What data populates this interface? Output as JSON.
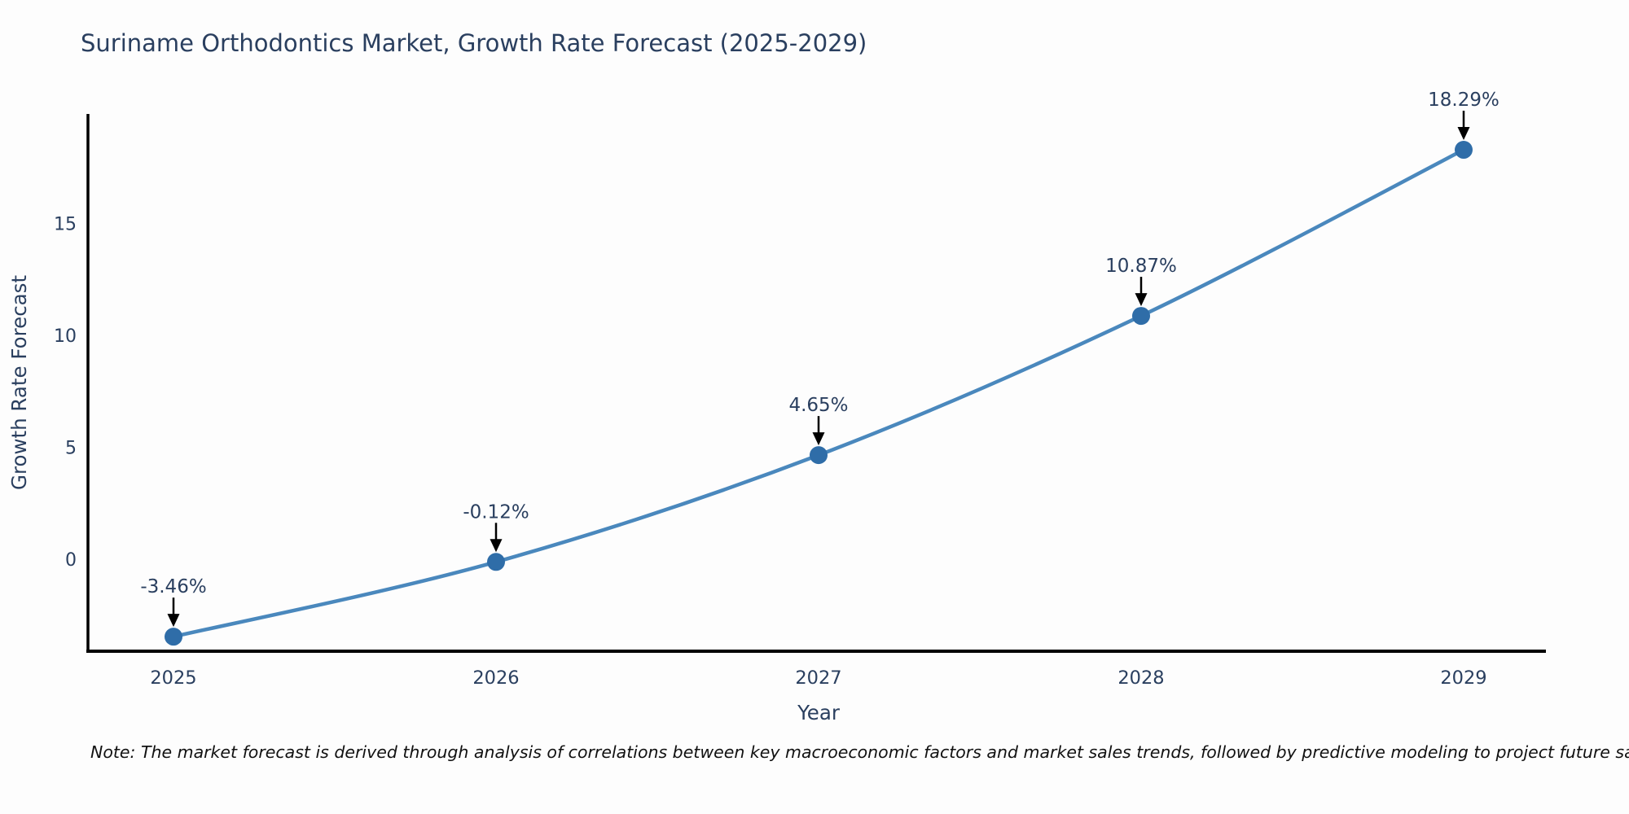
{
  "header": {
    "title": "Suriname Orthodontics Market, Growth Rate Forecast (2025-2029)"
  },
  "chart_data": {
    "type": "line",
    "title": "Suriname Orthodontics Market, Growth Rate Forecast (2025-2029)",
    "x": [
      2025,
      2026,
      2027,
      2028,
      2029
    ],
    "series": [
      {
        "name": "Growth Rate Forecast",
        "values": [
          -3.46,
          -0.12,
          4.65,
          10.87,
          18.29
        ],
        "point_labels": [
          "-3.46%",
          "-0.12%",
          "4.65%",
          "10.87%",
          "18.29%"
        ]
      }
    ],
    "xlabel": "Year",
    "ylabel": "Growth Rate Forecast",
    "x_tick_labels": [
      "2025",
      "2026",
      "2027",
      "2028",
      "2029"
    ],
    "y_ticks": [
      0,
      5,
      10,
      15
    ],
    "ylim": [
      -4.15,
      19.95
    ],
    "grid": false,
    "legend_position": "none",
    "colors": {
      "line": "#4a88bd",
      "marker": "#2f6da8",
      "axis": "#000000",
      "text": "#2a3f5f",
      "annotation_arrow": "#000000"
    }
  },
  "footer": {
    "note": "Note: The market forecast is derived through analysis of correlations between key macroeconomic factors and market sales trends, followed by predictive modeling to project future sales"
  }
}
